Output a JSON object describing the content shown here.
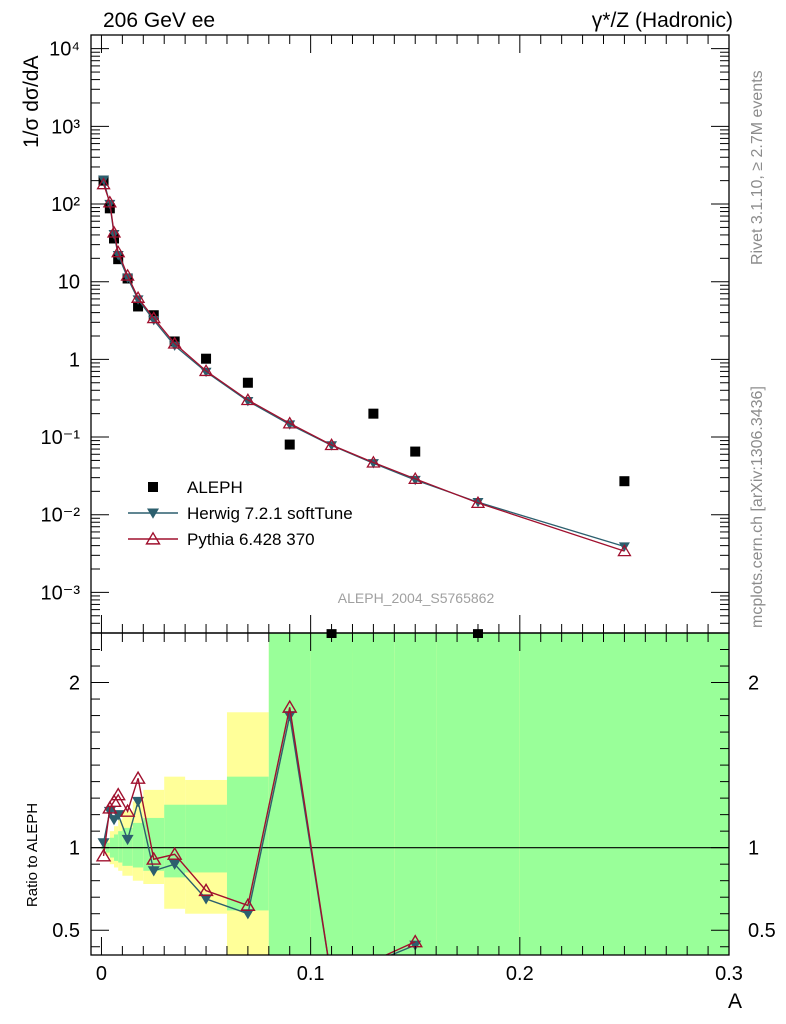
{
  "header": {
    "left": "206 GeV ee",
    "right": "γ*/Z (Hadronic)"
  },
  "side_text": {
    "rivet": "Rivet 3.1.10, ≥ 2.7M events",
    "mcplots": "mcplots.cern.ch [arXiv:1306.3436]"
  },
  "watermark": "ALEPH_2004_S5765862",
  "chart_data": [
    {
      "type": "scatter",
      "panel": "main",
      "ylabel": "1/σ  dσ/dA",
      "yscale": "log",
      "ylim": [
        0.0003,
        15000
      ],
      "xlim": [
        -0.005,
        0.3
      ],
      "y_ticks": [
        "10⁻³",
        "10⁻²",
        "10⁻¹",
        "1",
        "10",
        "10²",
        "10³",
        "10⁴"
      ],
      "legend_position": "lower-left",
      "series": [
        {
          "name": "ALEPH",
          "style": "data",
          "color": "#000000",
          "x": [
            0.001,
            0.004,
            0.006,
            0.008,
            0.0125,
            0.0175,
            0.025,
            0.035,
            0.05,
            0.07,
            0.09,
            0.11,
            0.13,
            0.15,
            0.18,
            0.25
          ],
          "values": [
            200,
            88,
            36,
            19.5,
            11,
            4.8,
            3.7,
            1.7,
            1.02,
            0.5,
            0.08,
            0.00029,
            0.2,
            0.065,
            0.00029,
            0.027
          ]
        },
        {
          "name": "Herwig 7.2.1 softTune",
          "style": "herwig",
          "color": "#2c5f6e",
          "x": [
            0.001,
            0.004,
            0.006,
            0.008,
            0.0125,
            0.0175,
            0.025,
            0.035,
            0.05,
            0.07,
            0.09,
            0.11,
            0.13,
            0.15,
            0.18,
            0.25
          ],
          "values": [
            205,
            100,
            41,
            22,
            11.2,
            5.9,
            3.2,
            1.5,
            0.69,
            0.29,
            0.145,
            0.078,
            0.046,
            0.028,
            0.0145,
            0.0039
          ]
        },
        {
          "name": "Pythia 6.428 370",
          "style": "pythia",
          "color": "#a0102e",
          "x": [
            0.001,
            0.004,
            0.006,
            0.008,
            0.0125,
            0.0175,
            0.025,
            0.035,
            0.05,
            0.07,
            0.09,
            0.11,
            0.13,
            0.15,
            0.18,
            0.25
          ],
          "values": [
            180,
            105,
            43,
            24,
            12,
            6.2,
            3.4,
            1.6,
            0.71,
            0.3,
            0.15,
            0.079,
            0.047,
            0.029,
            0.0142,
            0.0034
          ]
        }
      ]
    },
    {
      "type": "line",
      "panel": "ratio",
      "xlabel": "A",
      "ylabel": "Ratio to ALEPH",
      "ylim": [
        0.35,
        2.3
      ],
      "xlim": [
        -0.005,
        0.3
      ],
      "x_ticks": [
        0,
        0.1,
        0.2,
        0.3
      ],
      "x_tick_labels": [
        "0",
        "0.1",
        "0.2",
        "0.3"
      ],
      "y_ticks": [
        0.5,
        1,
        2
      ],
      "y_tick_labels": [
        "0.5",
        "1",
        "2"
      ],
      "bands": {
        "edges": [
          0,
          0.002,
          0.004,
          0.006,
          0.008,
          0.01,
          0.015,
          0.02,
          0.03,
          0.04,
          0.06,
          0.08,
          0.1,
          0.12,
          0.14,
          0.16,
          0.2,
          0.3
        ],
        "yellow_lo": [
          0.99,
          0.95,
          0.9,
          0.88,
          0.86,
          0.83,
          0.8,
          0.78,
          0.63,
          0.6,
          0.35,
          0.35,
          0.35,
          0.35,
          0.35,
          0.35,
          0.35
        ],
        "yellow_hi": [
          1.01,
          1.05,
          1.1,
          1.13,
          1.17,
          1.22,
          1.28,
          1.35,
          1.43,
          1.41,
          1.82,
          2.3,
          2.3,
          2.18,
          2.3,
          2.3,
          2.3
        ],
        "green_lo": [
          0.99,
          0.97,
          0.94,
          0.92,
          0.91,
          0.89,
          0.88,
          0.86,
          0.82,
          0.85,
          0.62,
          0.35,
          0.35,
          0.35,
          0.35,
          0.35,
          0.35
        ],
        "green_hi": [
          1.01,
          1.03,
          1.06,
          1.08,
          1.1,
          1.12,
          1.15,
          1.18,
          1.26,
          1.26,
          1.43,
          2.3,
          2.3,
          2.3,
          2.3,
          2.3,
          2.3
        ]
      },
      "series": [
        {
          "name": "Herwig 7.2.1 softTune",
          "style": "herwig",
          "color": "#2c5f6e",
          "x": [
            0.001,
            0.004,
            0.006,
            0.008,
            0.0125,
            0.0175,
            0.025,
            0.035,
            0.05,
            0.07,
            0.09,
            0.11,
            0.15
          ],
          "values": [
            1.03,
            1.22,
            1.17,
            1.2,
            1.05,
            1.28,
            0.86,
            0.9,
            0.69,
            0.6,
            1.8,
            0.2,
            0.41
          ]
        },
        {
          "name": "Pythia 6.428 370",
          "style": "pythia",
          "color": "#a0102e",
          "x": [
            0.001,
            0.004,
            0.006,
            0.008,
            0.0125,
            0.0175,
            0.025,
            0.035,
            0.05,
            0.07,
            0.09,
            0.11,
            0.15
          ],
          "values": [
            0.95,
            1.24,
            1.28,
            1.32,
            1.22,
            1.42,
            0.93,
            0.96,
            0.74,
            0.65,
            1.85,
            0.2,
            0.43
          ]
        }
      ]
    }
  ]
}
